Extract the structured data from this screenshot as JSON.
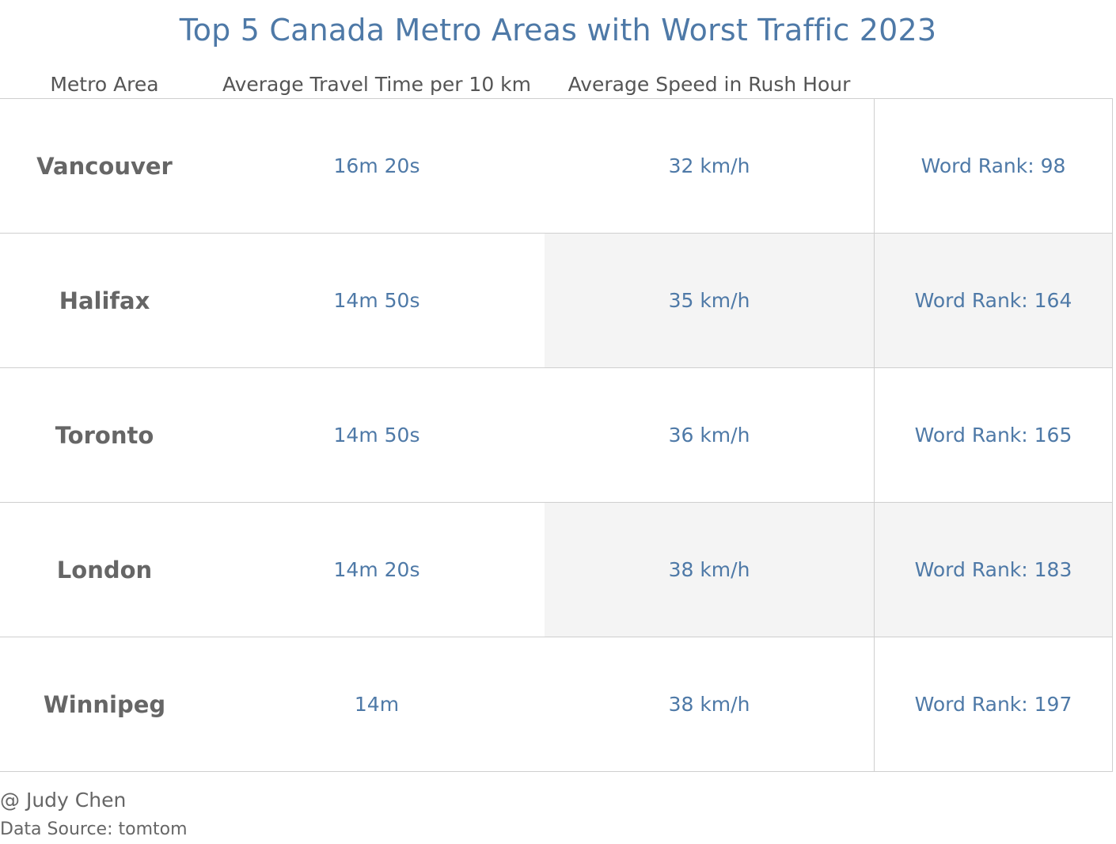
{
  "title": "Top 5 Canada Metro Areas with Worst Traffic 2023",
  "headers": {
    "metro": "Metro Area",
    "travel": "Average Travel Time per 10 km",
    "speed": "Average Speed in Rush Hour"
  },
  "rows": [
    {
      "metro": "Vancouver",
      "travel": "16m 20s",
      "speed": "32 km/h",
      "rank": "Word Rank: 98"
    },
    {
      "metro": "Halifax",
      "travel": "14m 50s",
      "speed": "35 km/h",
      "rank": "Word Rank: 164"
    },
    {
      "metro": "Toronto",
      "travel": "14m 50s",
      "speed": "36 km/h",
      "rank": "Word Rank: 165"
    },
    {
      "metro": "London",
      "travel": "14m 20s",
      "speed": "38 km/h",
      "rank": "Word Rank: 183"
    },
    {
      "metro": "Winnipeg",
      "travel": "14m",
      "speed": "38 km/h",
      "rank": "Word Rank: 197"
    }
  ],
  "footer": {
    "author": "@ Judy Chen",
    "source": "Data Source: tomtom"
  },
  "colors": {
    "accent": "#4e79a7",
    "label": "#666666",
    "shade": "#f4f4f4",
    "rule": "#cfcfcf"
  },
  "chart_data": {
    "type": "table",
    "title": "Top 5 Canada Metro Areas with Worst Traffic 2023",
    "columns": [
      "Metro Area",
      "Average Travel Time per 10 km",
      "Average Speed in Rush Hour",
      ""
    ],
    "categories": [
      "Vancouver",
      "Halifax",
      "Toronto",
      "London",
      "Winnipeg"
    ],
    "series": [
      {
        "name": "Average Travel Time per 10 km",
        "values": [
          "16m 20s",
          "14m 50s",
          "14m 50s",
          "14m 20s",
          "14m"
        ]
      },
      {
        "name": "Average Speed in Rush Hour",
        "values": [
          "32 km/h",
          "35 km/h",
          "36 km/h",
          "38 km/h",
          "38 km/h"
        ]
      },
      {
        "values": [
          "Word Rank: 98",
          "Word Rank: 164",
          "Word Rank: 165",
          "Word Rank: 183",
          "Word Rank: 197"
        ]
      }
    ],
    "highlighted_cells": [
      {
        "row": "Halifax",
        "column": "Average Speed in Rush Hour"
      },
      {
        "row": "Halifax",
        "column": "rank"
      },
      {
        "row": "London",
        "column": "Average Speed in Rush Hour"
      },
      {
        "row": "London",
        "column": "rank"
      }
    ]
  }
}
